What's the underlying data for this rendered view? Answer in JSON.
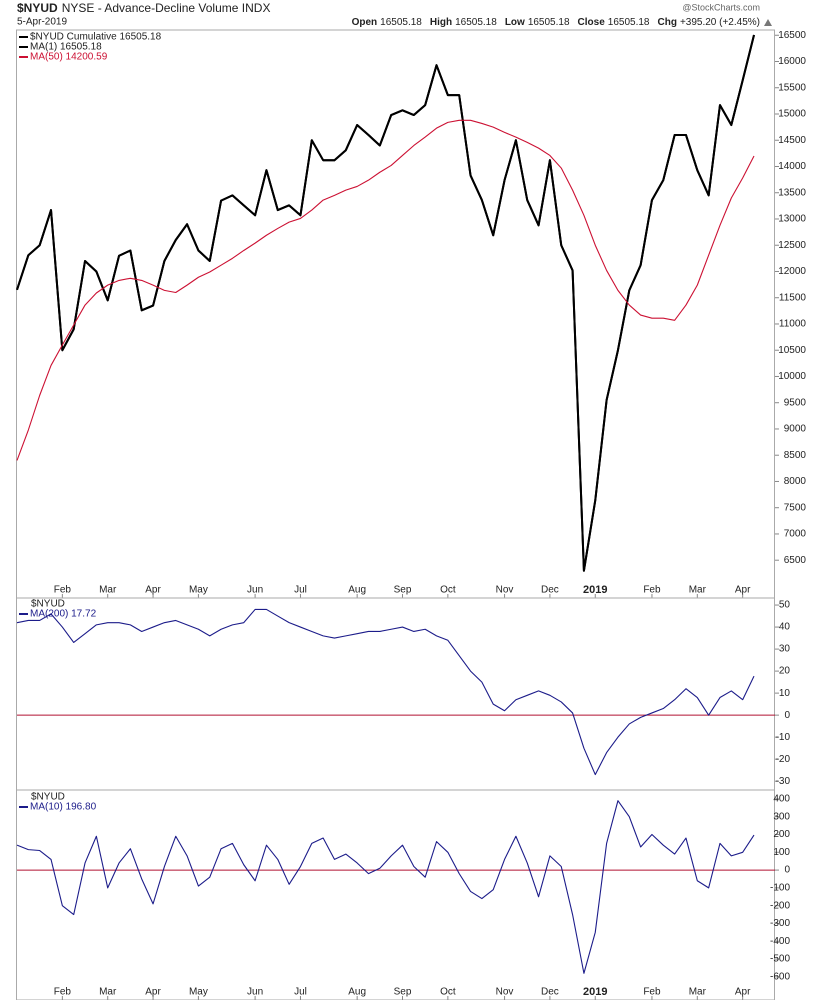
{
  "header": {
    "symbol": "$NYUD",
    "description": "NYSE - Advance-Decline Volume INDX",
    "date": "5-Apr-2019",
    "watermark": "@StockCharts.com",
    "quote": [
      {
        "label": "Open",
        "value": "16505.18"
      },
      {
        "label": "High",
        "value": "16505.18"
      },
      {
        "label": "Low",
        "value": "16505.18"
      },
      {
        "label": "Close",
        "value": "16505.18"
      },
      {
        "label": "Chg",
        "value": "+395.20 (+2.45%)"
      }
    ]
  },
  "chart_data": [
    {
      "type": "line",
      "categories": [
        null,
        null,
        null,
        null,
        "Feb",
        null,
        null,
        null,
        "Mar",
        null,
        null,
        null,
        "Apr",
        null,
        null,
        null,
        "May",
        null,
        null,
        null,
        null,
        "Jun",
        null,
        null,
        null,
        "Jul",
        null,
        null,
        null,
        null,
        "Aug",
        null,
        null,
        null,
        "Sep",
        null,
        null,
        null,
        "Oct",
        null,
        null,
        null,
        null,
        "Nov",
        null,
        null,
        null,
        "Dec",
        null,
        null,
        null,
        "2019",
        null,
        null,
        null,
        null,
        "Feb",
        null,
        null,
        null,
        "Mar",
        null,
        null,
        null,
        "Apr",
        null
      ],
      "series": [
        {
          "name": "$NYUD Cumulative 16505.18",
          "color": "#000000",
          "values": [
            11650,
            12310,
            12500,
            13170,
            10500,
            10900,
            12200,
            12000,
            11450,
            12300,
            12400,
            11260,
            11350,
            12200,
            12600,
            12900,
            12400,
            12200,
            13350,
            13450,
            13260,
            13070,
            13930,
            13170,
            13260,
            13070,
            14500,
            14120,
            14120,
            14310,
            14790,
            14600,
            14400,
            14980,
            15070,
            14980,
            15170,
            15930,
            15360,
            15360,
            13830,
            13360,
            12690,
            13740,
            14500,
            13360,
            12880,
            14120,
            12500,
            12020,
            6300,
            7640,
            9550,
            10500,
            11640,
            12120,
            13360,
            13740,
            14600,
            14600,
            13930,
            13450,
            15170,
            14790,
            15640,
            16505.18
          ]
        },
        {
          "name": "MA(1) 16505.18",
          "color": "#000000",
          "values": [
            11650,
            12310,
            12500,
            13170,
            10500,
            10900,
            12200,
            12000,
            11450,
            12300,
            12400,
            11260,
            11350,
            12200,
            12600,
            12900,
            12400,
            12200,
            13350,
            13450,
            13260,
            13070,
            13930,
            13170,
            13260,
            13070,
            14500,
            14120,
            14120,
            14310,
            14790,
            14600,
            14400,
            14980,
            15070,
            14980,
            15170,
            15930,
            15360,
            15360,
            13830,
            13360,
            12690,
            13740,
            14500,
            13360,
            12880,
            14120,
            12500,
            12020,
            6300,
            7640,
            9550,
            10500,
            11640,
            12120,
            13360,
            13740,
            14600,
            14600,
            13930,
            13450,
            15170,
            14790,
            15640,
            16505.18
          ]
        },
        {
          "name": "MA(50) 14200.59",
          "color": "#cc1133",
          "values": [
            8400,
            8980,
            9640,
            10210,
            10600,
            10980,
            11360,
            11590,
            11740,
            11830,
            11870,
            11830,
            11740,
            11640,
            11600,
            11740,
            11890,
            11990,
            12120,
            12250,
            12400,
            12540,
            12690,
            12820,
            12940,
            13010,
            13170,
            13360,
            13450,
            13550,
            13620,
            13740,
            13890,
            14020,
            14210,
            14400,
            14560,
            14730,
            14840,
            14880,
            14880,
            14820,
            14750,
            14650,
            14560,
            14460,
            14350,
            14210,
            13970,
            13550,
            13070,
            12500,
            12020,
            11640,
            11360,
            11170,
            11110,
            11110,
            11070,
            11360,
            11740,
            12310,
            12880,
            13400,
            13780,
            14200.59
          ]
        }
      ],
      "ylim": [
        5780,
        16600
      ],
      "yticks": [
        6500,
        7000,
        7500,
        8000,
        8500,
        9000,
        9500,
        10000,
        10500,
        11000,
        11500,
        12000,
        12500,
        13000,
        13500,
        14000,
        14500,
        15000,
        15500,
        16000,
        16500
      ]
    },
    {
      "type": "line",
      "label": "$NYUD",
      "series": [
        {
          "name": "MA(200) 17.72",
          "color": "#1c1c8a",
          "values": [
            42,
            43,
            43,
            46,
            40,
            33,
            37,
            41,
            42,
            42,
            41,
            38,
            40,
            42,
            43,
            41,
            39,
            36,
            39,
            41,
            42,
            48,
            48,
            45,
            42,
            40,
            38,
            36,
            35,
            36,
            37,
            38,
            38,
            39,
            40,
            38,
            39,
            36,
            34,
            27,
            20,
            15,
            5,
            2,
            7,
            9,
            11,
            9,
            6,
            1,
            -15,
            -27,
            -17,
            -10,
            -4,
            -1,
            1,
            3,
            7,
            12,
            8,
            0,
            8,
            11,
            7,
            17.72
          ]
        }
      ],
      "reference_line": {
        "value": 0,
        "color": "#b01030"
      },
      "ylim": [
        -34,
        53.2
      ],
      "yticks": [
        -30,
        -20,
        -10,
        0,
        10,
        20,
        30,
        40,
        50
      ]
    },
    {
      "type": "line",
      "label": "$NYUD",
      "categories": [
        null,
        null,
        null,
        null,
        "Feb",
        null,
        null,
        null,
        "Mar",
        null,
        null,
        null,
        "Apr",
        null,
        null,
        null,
        "May",
        null,
        null,
        null,
        null,
        "Jun",
        null,
        null,
        null,
        "Jul",
        null,
        null,
        null,
        null,
        "Aug",
        null,
        null,
        null,
        "Sep",
        null,
        null,
        null,
        "Oct",
        null,
        null,
        null,
        null,
        "Nov",
        null,
        null,
        null,
        "Dec",
        null,
        null,
        null,
        "2019",
        null,
        null,
        null,
        null,
        "Feb",
        null,
        null,
        null,
        "Mar",
        null,
        null,
        null,
        "Apr",
        null
      ],
      "series": [
        {
          "name": "MA(10) 196.80",
          "color": "#1c1c8a",
          "values": [
            140,
            115,
            110,
            60,
            -200,
            -250,
            40,
            190,
            -100,
            40,
            120,
            -50,
            -190,
            20,
            190,
            80,
            -90,
            -40,
            120,
            150,
            30,
            -60,
            140,
            60,
            -80,
            20,
            150,
            180,
            60,
            90,
            40,
            -20,
            10,
            80,
            140,
            20,
            -40,
            160,
            100,
            -20,
            -120,
            -160,
            -110,
            60,
            190,
            40,
            -150,
            80,
            20,
            -250,
            -580,
            -350,
            150,
            390,
            300,
            130,
            200,
            140,
            90,
            180,
            -60,
            -100,
            150,
            80,
            100,
            196.8
          ]
        }
      ],
      "reference_line": {
        "value": 0,
        "color": "#b01030"
      },
      "ylim": [
        -730,
        450
      ],
      "yticks": [
        -600,
        -500,
        -400,
        -300,
        -200,
        -100,
        0,
        100,
        200,
        300,
        400
      ]
    }
  ]
}
